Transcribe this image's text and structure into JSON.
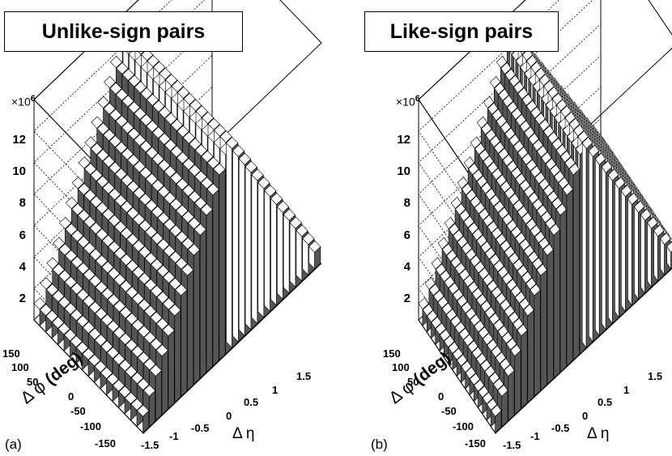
{
  "chart_data": [
    {
      "type": "lego3d",
      "title": "Unlike-sign pairs",
      "panel_label": "(a)",
      "xlabel": "Δ η",
      "ylabel_symbol": "Δ φ",
      "ylabel_unit": "(deg)",
      "z_multiplier_base": "×10",
      "z_multiplier_exp": "6",
      "z_ticks": [
        "2",
        "4",
        "6",
        "8",
        "10",
        "12"
      ],
      "x_ticks": [
        "-1.5",
        "-1",
        "-0.5",
        "0",
        "0.5",
        "1",
        "1.5"
      ],
      "y_ticks": [
        "150",
        "100",
        "50",
        "0",
        "-50",
        "-100",
        "-150"
      ],
      "x_range": [
        -2,
        2
      ],
      "y_range": [
        -180,
        180
      ],
      "z_range": [
        0,
        14
      ],
      "peak_value": 13.1,
      "edge_value": 0.6,
      "shape": "triangular ridge in Δη, flat in Δφ"
    },
    {
      "type": "lego3d",
      "title": "Like-sign pairs",
      "panel_label": "(b)",
      "xlabel": "Δ η",
      "ylabel_symbol": "Δ φ",
      "ylabel_unit": "(deg)",
      "z_multiplier_base": "×10",
      "z_multiplier_exp": "6",
      "z_ticks": [
        "2",
        "4",
        "6",
        "8",
        "10",
        "12"
      ],
      "x_ticks": [
        "-1.5",
        "-1",
        "-0.5",
        "0",
        "0.5",
        "1",
        "1.5"
      ],
      "y_ticks": [
        "150",
        "100",
        "50",
        "0",
        "-50",
        "-100",
        "-150"
      ],
      "x_range": [
        -2,
        2
      ],
      "y_range": [
        -180,
        180
      ],
      "z_range": [
        0,
        14
      ],
      "peak_value": 13.1,
      "edge_value": 0.6,
      "shape": "triangular ridge in Δη, flat in Δφ"
    }
  ]
}
